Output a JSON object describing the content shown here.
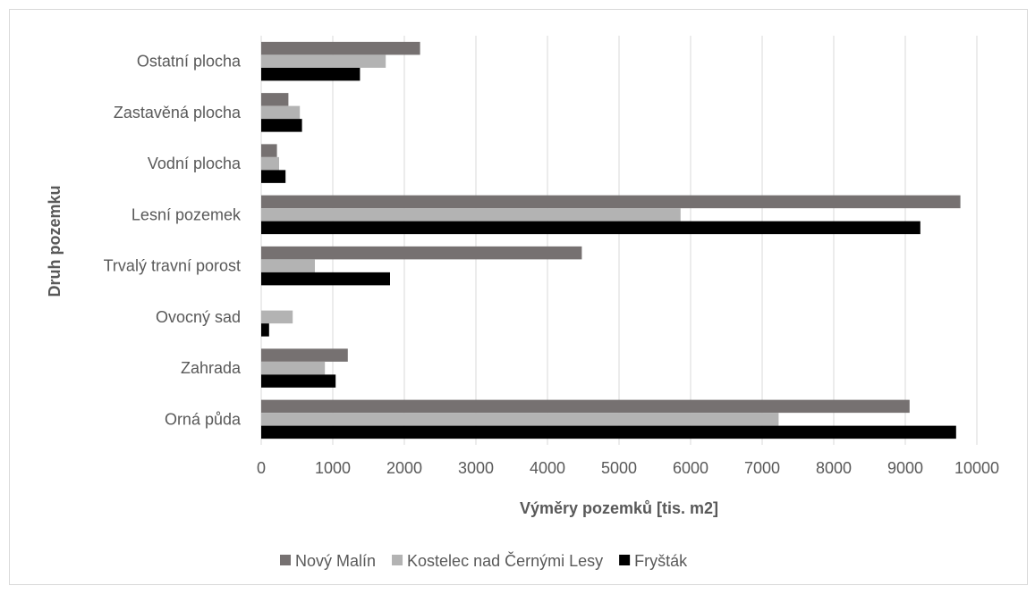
{
  "chart_data": {
    "type": "bar",
    "orientation": "horizontal",
    "categories": [
      "Orná půda",
      "Zahrada",
      "Ovocný sad",
      "Trvalý travní porost",
      "Lesní pozemek",
      "Vodní plocha",
      "Zastavěná plocha",
      "Ostatní plocha"
    ],
    "series": [
      {
        "name": "Nový Malín",
        "color": "#767171",
        "values": [
          9060,
          1210,
          0,
          4480,
          9770,
          220,
          380,
          2220
        ]
      },
      {
        "name": "Kostelec nad Černými Lesy",
        "color": "#b3b3b3",
        "values": [
          7230,
          890,
          440,
          750,
          5860,
          250,
          540,
          1740
        ]
      },
      {
        "name": "Fryšták",
        "color": "#000000",
        "values": [
          9710,
          1040,
          110,
          1800,
          9210,
          340,
          570,
          1380
        ]
      }
    ],
    "xlabel": "Výměry pozemků [tis. m2]",
    "ylabel": "Druh pozemku",
    "xlim": [
      0,
      10000
    ],
    "xticks": [
      "0",
      "1000",
      "2000",
      "3000",
      "4000",
      "5000",
      "6000",
      "7000",
      "8000",
      "9000",
      "10000"
    ],
    "grid": true,
    "legend_position": "bottom"
  }
}
